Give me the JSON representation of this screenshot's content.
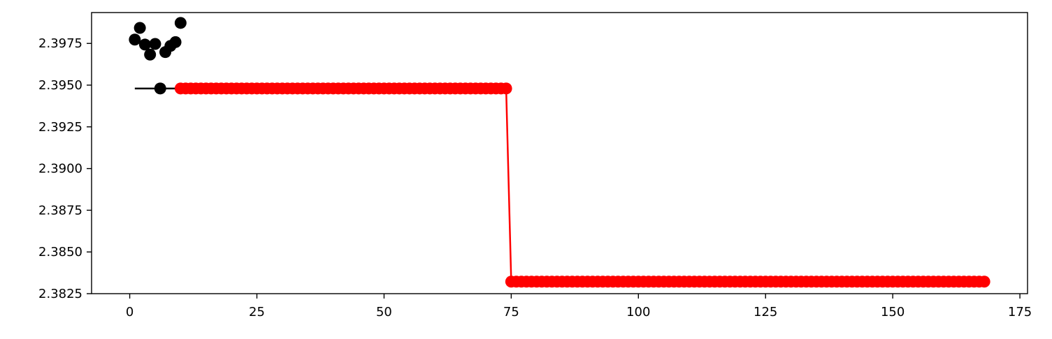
{
  "chart_data": {
    "type": "scatter",
    "title": "",
    "xlabel": "",
    "ylabel": "",
    "xlim": [
      -7.5,
      176.5
    ],
    "ylim": [
      2.3825,
      2.39935
    ],
    "x_ticks": [
      0,
      25,
      50,
      75,
      100,
      125,
      150,
      175
    ],
    "y_ticks": [
      2.3825,
      2.385,
      2.3875,
      2.39,
      2.3925,
      2.395,
      2.3975
    ],
    "y_tick_labels": [
      "2.3825",
      "2.3850",
      "2.3875",
      "2.3900",
      "2.3925",
      "2.3950",
      "2.3975"
    ],
    "grid": false,
    "legend": "none",
    "colors": {
      "initial": "#000000",
      "optimized": "#ff0000"
    },
    "series": [
      {
        "style": "points",
        "color": "#000000",
        "points": [
          [
            1,
            2.39773
          ],
          [
            2,
            2.39843
          ],
          [
            3,
            2.39743
          ],
          [
            4,
            2.39683
          ],
          [
            5,
            2.39747
          ],
          [
            6,
            2.3948
          ],
          [
            7,
            2.39698
          ],
          [
            8,
            2.39735
          ],
          [
            9,
            2.39758
          ],
          [
            10,
            2.39873
          ]
        ]
      },
      {
        "style": "line",
        "color": "#000000",
        "points": [
          [
            1,
            2.3948
          ],
          [
            10,
            2.3948
          ]
        ]
      },
      {
        "style": "line+points",
        "color": "#ff0000",
        "segments": [
          {
            "x_start": 10,
            "x_end": 74,
            "y": 2.3948
          },
          {
            "x_start": 75,
            "x_end": 168,
            "y": 2.38322
          }
        ]
      }
    ]
  }
}
